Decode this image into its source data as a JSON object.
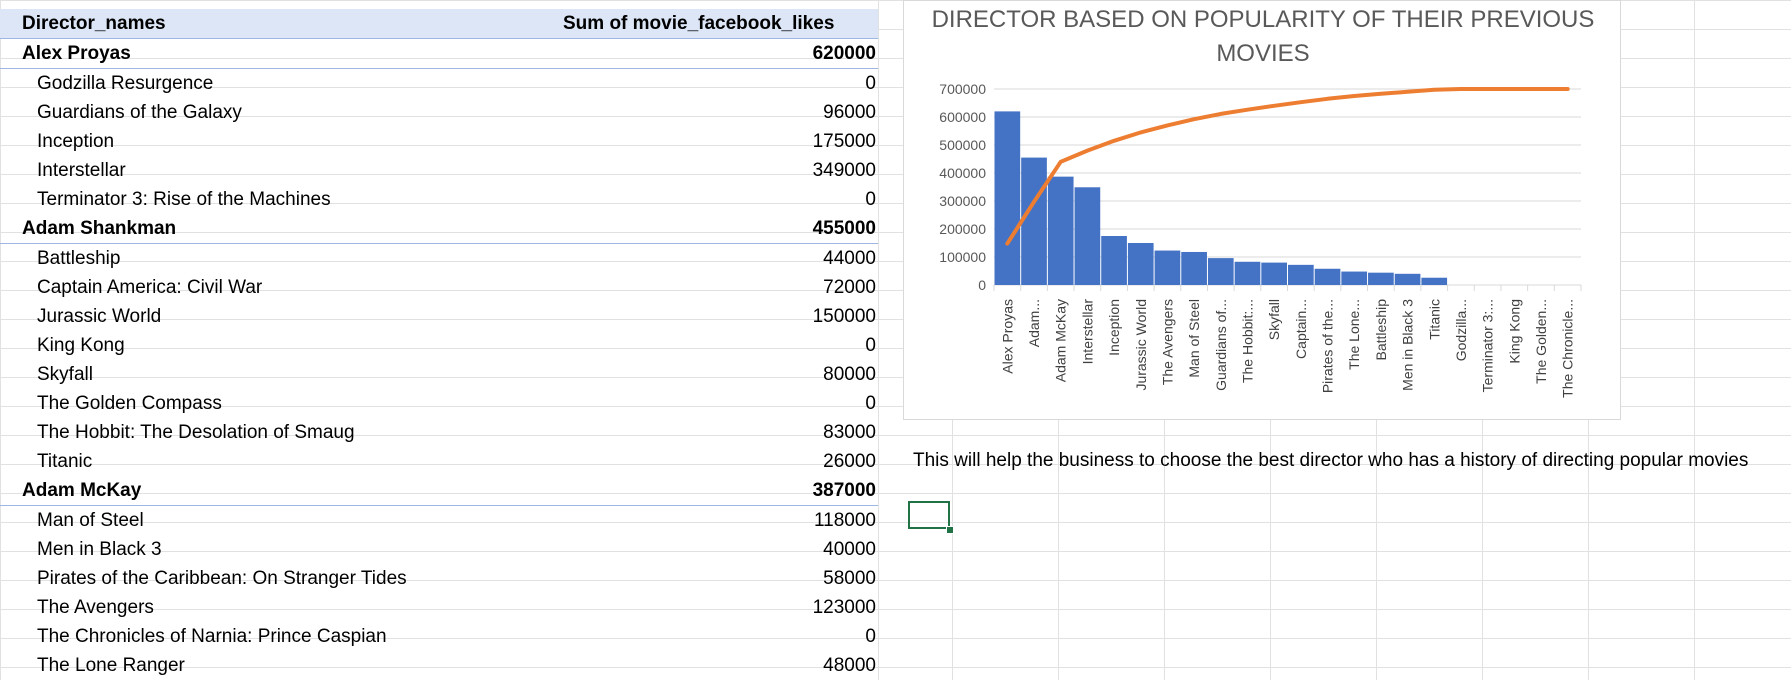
{
  "pivot": {
    "header": {
      "name": "Director_names",
      "value": "Sum of movie_facebook_likes"
    },
    "rows": [
      {
        "type": "group",
        "name": "Alex Proyas",
        "value": "620000"
      },
      {
        "type": "child",
        "name": "Godzilla Resurgence",
        "value": "0"
      },
      {
        "type": "child",
        "name": "Guardians of the Galaxy",
        "value": "96000"
      },
      {
        "type": "child",
        "name": "Inception",
        "value": "175000"
      },
      {
        "type": "child",
        "name": "Interstellar",
        "value": "349000"
      },
      {
        "type": "child",
        "name": "Terminator 3: Rise of the Machines",
        "value": "0"
      },
      {
        "type": "group",
        "name": "Adam Shankman",
        "value": "455000"
      },
      {
        "type": "child",
        "name": "Battleship",
        "value": "44000"
      },
      {
        "type": "child",
        "name": "Captain America: Civil War",
        "value": "72000"
      },
      {
        "type": "child",
        "name": "Jurassic World",
        "value": "150000"
      },
      {
        "type": "child",
        "name": "King Kong",
        "value": "0"
      },
      {
        "type": "child",
        "name": "Skyfall",
        "value": "80000"
      },
      {
        "type": "child",
        "name": "The Golden Compass",
        "value": "0"
      },
      {
        "type": "child",
        "name": "The Hobbit: The Desolation of Smaug",
        "value": "83000"
      },
      {
        "type": "child",
        "name": "Titanic",
        "value": "26000"
      },
      {
        "type": "group",
        "name": "Adam McKay",
        "value": "387000"
      },
      {
        "type": "child",
        "name": "Man of Steel",
        "value": "118000"
      },
      {
        "type": "child",
        "name": "Men in Black 3",
        "value": "40000"
      },
      {
        "type": "child",
        "name": "Pirates of the Caribbean: On Stranger Tides",
        "value": "58000"
      },
      {
        "type": "child",
        "name": "The Avengers",
        "value": "123000"
      },
      {
        "type": "child",
        "name": "The Chronicles of Narnia: Prince Caspian",
        "value": "0"
      },
      {
        "type": "child",
        "name": "The Lone Ranger",
        "value": "48000"
      }
    ]
  },
  "note": "This will help the business to choose the best director who has a history of directing popular movies",
  "chart_data": {
    "type": "bar",
    "title": "DIRECTOR BASED ON POPULARITY OF THEIR PREVIOUS MOVIES",
    "categories": [
      "Alex Proyas",
      "Adam...",
      "Adam McKay",
      "Interstellar",
      "Inception",
      "Jurassic World",
      "The Avengers",
      "Man of Steel",
      "Guardians of...",
      "The Hobbit:...",
      "Skyfall",
      "Captain...",
      "Pirates of the...",
      "The Lone...",
      "Battleship",
      "Men in Black 3",
      "Titanic",
      "Godzilla...",
      "Terminator 3:...",
      "King Kong",
      "The Golden...",
      "The Chronicle..."
    ],
    "series": [
      {
        "type": "bar",
        "values": [
          620000,
          455000,
          387000,
          349000,
          175000,
          150000,
          123000,
          118000,
          96000,
          83000,
          80000,
          72000,
          58000,
          48000,
          44000,
          40000,
          26000,
          0,
          0,
          0,
          0,
          0
        ]
      },
      {
        "type": "line",
        "values": [
          148000,
          297000,
          440000,
          480000,
          515000,
          545000,
          570000,
          592000,
          611000,
          626000,
          640000,
          653000,
          665000,
          675000,
          683000,
          690000,
          697000,
          700000,
          700000,
          700000,
          700000,
          700000
        ]
      }
    ],
    "ylim": [
      0,
      700000
    ],
    "yticks": [
      "0",
      "100000",
      "200000",
      "300000",
      "400000",
      "500000",
      "600000",
      "700000"
    ],
    "grid": true,
    "colors": {
      "bar": "#4472c4",
      "line": "#ed7d31"
    }
  }
}
